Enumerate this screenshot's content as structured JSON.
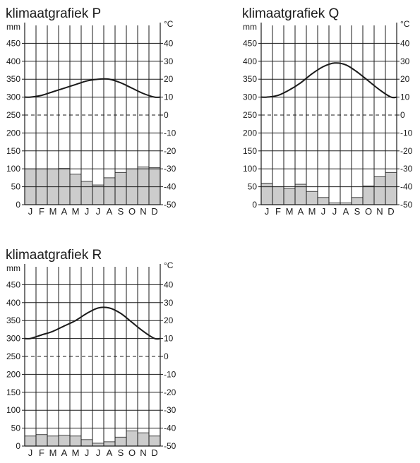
{
  "chart_data": [
    {
      "type": "bar+line",
      "title": "klimaatgrafiek P",
      "left_unit": "mm",
      "right_unit": "°C",
      "categories": [
        "J",
        "F",
        "M",
        "A",
        "M",
        "J",
        "J",
        "A",
        "S",
        "O",
        "N",
        "D"
      ],
      "left_ticks": [
        "0",
        "50",
        "100",
        "150",
        "200",
        "250",
        "300",
        "350",
        "400",
        "450"
      ],
      "right_ticks": [
        "-50",
        "-40",
        "-30",
        "-20",
        "-10",
        "0",
        "10",
        "20",
        "30",
        "40"
      ],
      "precip_range_mm": [
        0,
        500
      ],
      "temp_range_c": [
        -50,
        50
      ],
      "colors": {
        "bar": "#cccccc",
        "line": "#1a1a1a",
        "grid": "#1a1a1a"
      },
      "precipitation_mm": [
        100,
        100,
        100,
        101,
        85,
        65,
        55,
        75,
        90,
        100,
        105,
        103
      ],
      "temperature_c": [
        10,
        11,
        13,
        15,
        17,
        19,
        20,
        20,
        18,
        15,
        12,
        10
      ],
      "grid": true,
      "zero_line": "dashed"
    },
    {
      "type": "bar+line",
      "title": "klimaatgrafiek Q",
      "left_unit": "mm",
      "right_unit": "°C",
      "categories": [
        "J",
        "F",
        "M",
        "A",
        "M",
        "J",
        "J",
        "A",
        "S",
        "O",
        "N",
        "D"
      ],
      "left_ticks": [
        "0",
        "50",
        "100",
        "150",
        "200",
        "250",
        "300",
        "350",
        "400",
        "450"
      ],
      "right_ticks": [
        "-50",
        "-40",
        "-30",
        "-20",
        "-10",
        "0",
        "10",
        "20",
        "30",
        "40"
      ],
      "precip_range_mm": [
        0,
        500
      ],
      "temp_range_c": [
        -50,
        50
      ],
      "colors": {
        "bar": "#cccccc",
        "line": "#1a1a1a",
        "grid": "#1a1a1a"
      },
      "precipitation_mm": [
        60,
        50,
        45,
        57,
        37,
        20,
        5,
        5,
        20,
        52,
        78,
        90
      ],
      "temperature_c": [
        10,
        11,
        14,
        18,
        23,
        27,
        29,
        28,
        24,
        19,
        14,
        10
      ],
      "grid": true,
      "zero_line": "dashed"
    },
    {
      "type": "bar+line",
      "title": "klimaatgrafiek R",
      "left_unit": "mm",
      "right_unit": "°C",
      "categories": [
        "J",
        "F",
        "M",
        "A",
        "M",
        "J",
        "J",
        "A",
        "S",
        "O",
        "N",
        "D"
      ],
      "left_ticks": [
        "0",
        "50",
        "100",
        "150",
        "200",
        "250",
        "300",
        "350",
        "400",
        "450"
      ],
      "right_ticks": [
        "-50",
        "-40",
        "-30",
        "-20",
        "-10",
        "0",
        "10",
        "20",
        "30",
        "40"
      ],
      "precip_range_mm": [
        0,
        500
      ],
      "temp_range_c": [
        -50,
        50
      ],
      "colors": {
        "bar": "#cccccc",
        "line": "#1a1a1a",
        "grid": "#1a1a1a"
      },
      "precipitation_mm": [
        28,
        32,
        28,
        30,
        28,
        18,
        8,
        12,
        25,
        42,
        37,
        28
      ],
      "temperature_c": [
        10,
        12,
        14,
        17,
        20,
        24,
        27,
        27,
        24,
        19,
        14,
        10
      ],
      "grid": true,
      "zero_line": "dashed"
    }
  ]
}
